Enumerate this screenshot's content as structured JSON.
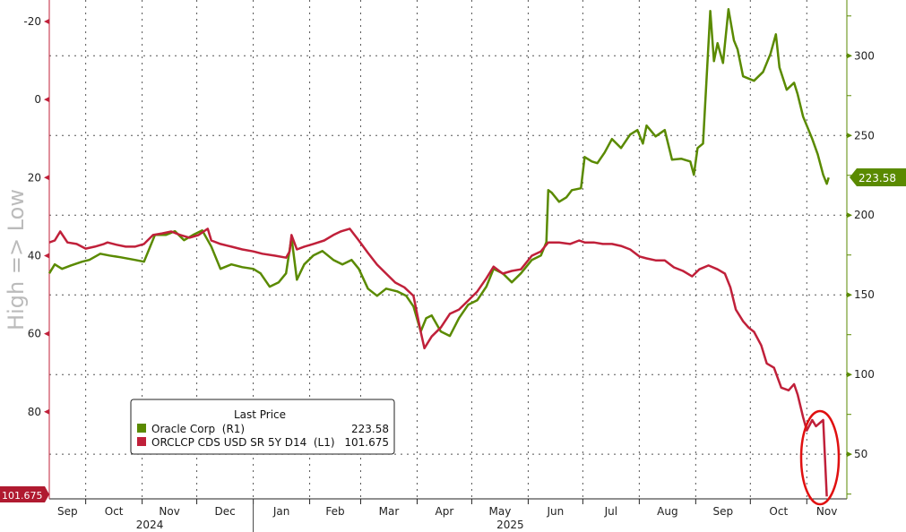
{
  "chart_data": {
    "type": "line",
    "title": "",
    "left_axis": {
      "label": "High => Low",
      "inverted": true,
      "ylim": [
        -25.5,
        102.3
      ],
      "ticks": [
        -20,
        0,
        20,
        40,
        60,
        80
      ],
      "color": "#c0203a"
    },
    "right_axis": {
      "ylim": [
        22,
        335
      ],
      "ticks": [
        50,
        100,
        150,
        200,
        250,
        300
      ],
      "color": "#5a8a00"
    },
    "xlim": [
      "2024-09-11",
      "2025-11-23"
    ],
    "x_ticks": [
      {
        "label": "Sep",
        "start": "2024-09-01"
      },
      {
        "label": "Oct",
        "start": "2024-10-01"
      },
      {
        "label": "Nov",
        "start": "2024-11-01"
      },
      {
        "label": "Dec",
        "start": "2024-12-01"
      },
      {
        "label": "Jan",
        "start": "2025-01-01"
      },
      {
        "label": "Feb",
        "start": "2025-02-01"
      },
      {
        "label": "Mar",
        "start": "2025-03-01"
      },
      {
        "label": "Apr",
        "start": "2025-04-01"
      },
      {
        "label": "May",
        "start": "2025-05-01"
      },
      {
        "label": "Jun",
        "start": "2025-06-01"
      },
      {
        "label": "Jul",
        "start": "2025-07-01"
      },
      {
        "label": "Aug",
        "start": "2025-08-01"
      },
      {
        "label": "Sep",
        "start": "2025-09-01"
      },
      {
        "label": "Oct",
        "start": "2025-10-01"
      },
      {
        "label": "Nov",
        "start": "2025-11-01"
      }
    ],
    "years": [
      {
        "label": "2024",
        "mid": "2024-11-15"
      },
      {
        "label": "2025",
        "mid": "2025-06-01",
        "start": "2025-01-01"
      }
    ],
    "grid": true,
    "legend": {
      "title": "Last Price",
      "placement": "bottom-left"
    },
    "series": [
      {
        "name": "Oracle Corp  (R1)",
        "axis": "right",
        "color": "#5a8a00",
        "last": "223.58",
        "x": [
          "2024-09-11",
          "2024-09-14",
          "2024-09-18",
          "2024-09-23",
          "2024-09-29",
          "2024-10-03",
          "2024-10-09",
          "2024-10-14",
          "2024-10-20",
          "2024-10-28",
          "2024-11-02",
          "2024-11-08",
          "2024-11-14",
          "2024-11-19",
          "2024-11-24",
          "2024-11-29",
          "2024-12-04",
          "2024-12-09",
          "2024-12-14",
          "2024-12-20",
          "2024-12-26",
          "2025-01-01",
          "2025-01-05",
          "2025-01-10",
          "2025-01-15",
          "2025-01-19",
          "2025-01-22",
          "2025-01-25",
          "2025-01-29",
          "2025-02-03",
          "2025-02-08",
          "2025-02-14",
          "2025-02-19",
          "2025-02-24",
          "2025-02-28",
          "2025-03-05",
          "2025-03-10",
          "2025-03-15",
          "2025-03-21",
          "2025-03-26",
          "2025-03-30",
          "2025-04-03",
          "2025-04-06",
          "2025-04-09",
          "2025-04-14",
          "2025-04-19",
          "2025-04-24",
          "2025-04-29",
          "2025-05-04",
          "2025-05-09",
          "2025-05-13",
          "2025-05-18",
          "2025-05-23",
          "2025-05-28",
          "2025-06-03",
          "2025-06-08",
          "2025-06-11",
          "2025-06-12",
          "2025-06-14",
          "2025-06-18",
          "2025-06-22",
          "2025-06-25",
          "2025-06-30",
          "2025-07-02",
          "2025-07-06",
          "2025-07-09",
          "2025-07-13",
          "2025-07-17",
          "2025-07-22",
          "2025-07-27",
          "2025-07-31",
          "2025-08-03",
          "2025-08-05",
          "2025-08-10",
          "2025-08-15",
          "2025-08-19",
          "2025-08-24",
          "2025-08-29",
          "2025-08-31",
          "2025-09-02",
          "2025-09-05",
          "2025-09-09",
          "2025-09-11",
          "2025-09-13",
          "2025-09-16",
          "2025-09-19",
          "2025-09-22",
          "2025-09-24",
          "2025-09-27",
          "2025-10-03",
          "2025-10-08",
          "2025-10-12",
          "2025-10-15",
          "2025-10-17",
          "2025-10-21",
          "2025-10-25",
          "2025-10-27",
          "2025-10-30",
          "2025-11-01",
          "2025-11-04",
          "2025-11-07",
          "2025-11-10",
          "2025-11-12",
          "2025-11-13"
        ],
        "y": [
          163.5,
          169.1,
          166.3,
          168.5,
          170.8,
          171.9,
          175.8,
          174.7,
          173.6,
          171.9,
          170.8,
          187.6,
          187.6,
          189.9,
          184.3,
          187.6,
          190.4,
          180.3,
          166.3,
          169.1,
          167.4,
          166.3,
          163.5,
          155.1,
          157.9,
          163.5,
          186.0,
          159.5,
          169.1,
          174.7,
          177.5,
          171.9,
          169.1,
          171.9,
          166.3,
          153.9,
          149.4,
          153.9,
          152.2,
          149.4,
          142.7,
          127.0,
          135.4,
          137.1,
          127.0,
          124.2,
          135.4,
          143.8,
          146.6,
          155.1,
          166.3,
          163.5,
          157.9,
          163.5,
          171.9,
          174.7,
          183.1,
          215.7,
          214.0,
          208.4,
          211.2,
          215.7,
          216.9,
          236.5,
          233.7,
          232.6,
          239.3,
          247.8,
          242.1,
          250.6,
          253.4,
          244.9,
          256.2,
          249.4,
          253.4,
          234.8,
          235.4,
          233.7,
          225.3,
          242.1,
          244.9,
          328.1,
          296.6,
          307.9,
          295.5,
          329.2,
          309.6,
          304.0,
          287.1,
          284.3,
          289.9,
          301.1,
          313.5,
          292.7,
          278.7,
          283.1,
          275.8,
          261.8,
          256.2,
          247.8,
          238.2,
          225.3,
          219.7,
          223.58
        ]
      },
      {
        "name": "ORCLCP CDS USD SR 5Y D14  (L1)",
        "axis": "left",
        "color": "#c0203a",
        "last": "101.675",
        "x": [
          "2024-09-11",
          "2024-09-14",
          "2024-09-17",
          "2024-09-21",
          "2024-09-26",
          "2024-10-01",
          "2024-10-06",
          "2024-10-11",
          "2024-10-13",
          "2024-10-18",
          "2024-10-23",
          "2024-10-28",
          "2024-11-02",
          "2024-11-07",
          "2024-11-12",
          "2024-11-17",
          "2024-11-22",
          "2024-11-27",
          "2024-12-02",
          "2024-12-07",
          "2024-12-09",
          "2024-12-14",
          "2024-12-20",
          "2024-12-26",
          "2025-01-01",
          "2025-01-06",
          "2025-01-13",
          "2025-01-19",
          "2025-01-21",
          "2025-01-22",
          "2025-01-25",
          "2025-01-29",
          "2025-02-03",
          "2025-02-09",
          "2025-02-14",
          "2025-02-18",
          "2025-02-23",
          "2025-02-28",
          "2025-03-05",
          "2025-03-10",
          "2025-03-15",
          "2025-03-20",
          "2025-03-25",
          "2025-03-30",
          "2025-04-03",
          "2025-04-05",
          "2025-04-09",
          "2025-04-14",
          "2025-04-19",
          "2025-04-24",
          "2025-04-29",
          "2025-05-04",
          "2025-05-09",
          "2025-05-13",
          "2025-05-18",
          "2025-05-23",
          "2025-05-28",
          "2025-06-03",
          "2025-06-08",
          "2025-06-12",
          "2025-06-18",
          "2025-06-24",
          "2025-06-29",
          "2025-07-02",
          "2025-07-07",
          "2025-07-12",
          "2025-07-17",
          "2025-07-22",
          "2025-07-27",
          "2025-08-01",
          "2025-08-05",
          "2025-08-10",
          "2025-08-15",
          "2025-08-20",
          "2025-08-25",
          "2025-08-30",
          "2025-09-03",
          "2025-09-08",
          "2025-09-13",
          "2025-09-17",
          "2025-09-20",
          "2025-09-23",
          "2025-09-27",
          "2025-09-30",
          "2025-10-03",
          "2025-10-07",
          "2025-10-10",
          "2025-10-14",
          "2025-10-18",
          "2025-10-22",
          "2025-10-25",
          "2025-10-27",
          "2025-10-30",
          "2025-11-01",
          "2025-11-04",
          "2025-11-06",
          "2025-11-10",
          "2025-11-12"
        ],
        "y": [
          36.6,
          36.1,
          33.8,
          36.6,
          37.0,
          38.2,
          37.7,
          37.0,
          36.6,
          37.2,
          37.7,
          37.7,
          37.0,
          34.7,
          34.3,
          33.8,
          34.7,
          35.4,
          34.7,
          33.1,
          36.1,
          37.0,
          37.7,
          38.4,
          38.9,
          39.5,
          40.0,
          40.5,
          38.9,
          34.7,
          38.4,
          37.7,
          37.0,
          36.1,
          34.7,
          33.8,
          33.1,
          36.1,
          39.3,
          42.3,
          44.6,
          46.9,
          48.1,
          50.3,
          59.5,
          63.7,
          60.7,
          58.4,
          54.9,
          53.8,
          51.5,
          49.2,
          45.8,
          42.8,
          44.6,
          43.9,
          43.5,
          40.0,
          38.9,
          36.6,
          36.6,
          37.0,
          36.1,
          36.6,
          36.6,
          37.0,
          37.0,
          37.5,
          38.4,
          40.2,
          40.7,
          41.2,
          41.2,
          43.0,
          43.9,
          45.3,
          43.5,
          42.5,
          43.5,
          44.6,
          48.1,
          53.8,
          56.8,
          58.4,
          59.5,
          63.0,
          67.6,
          68.7,
          73.8,
          74.5,
          72.9,
          75.6,
          81.4,
          84.8,
          82.1,
          83.7,
          82.1,
          101.675
        ]
      }
    ],
    "annotation": {
      "shape": "ellipse",
      "color": "#e01010",
      "around": "latest CDS move"
    }
  }
}
